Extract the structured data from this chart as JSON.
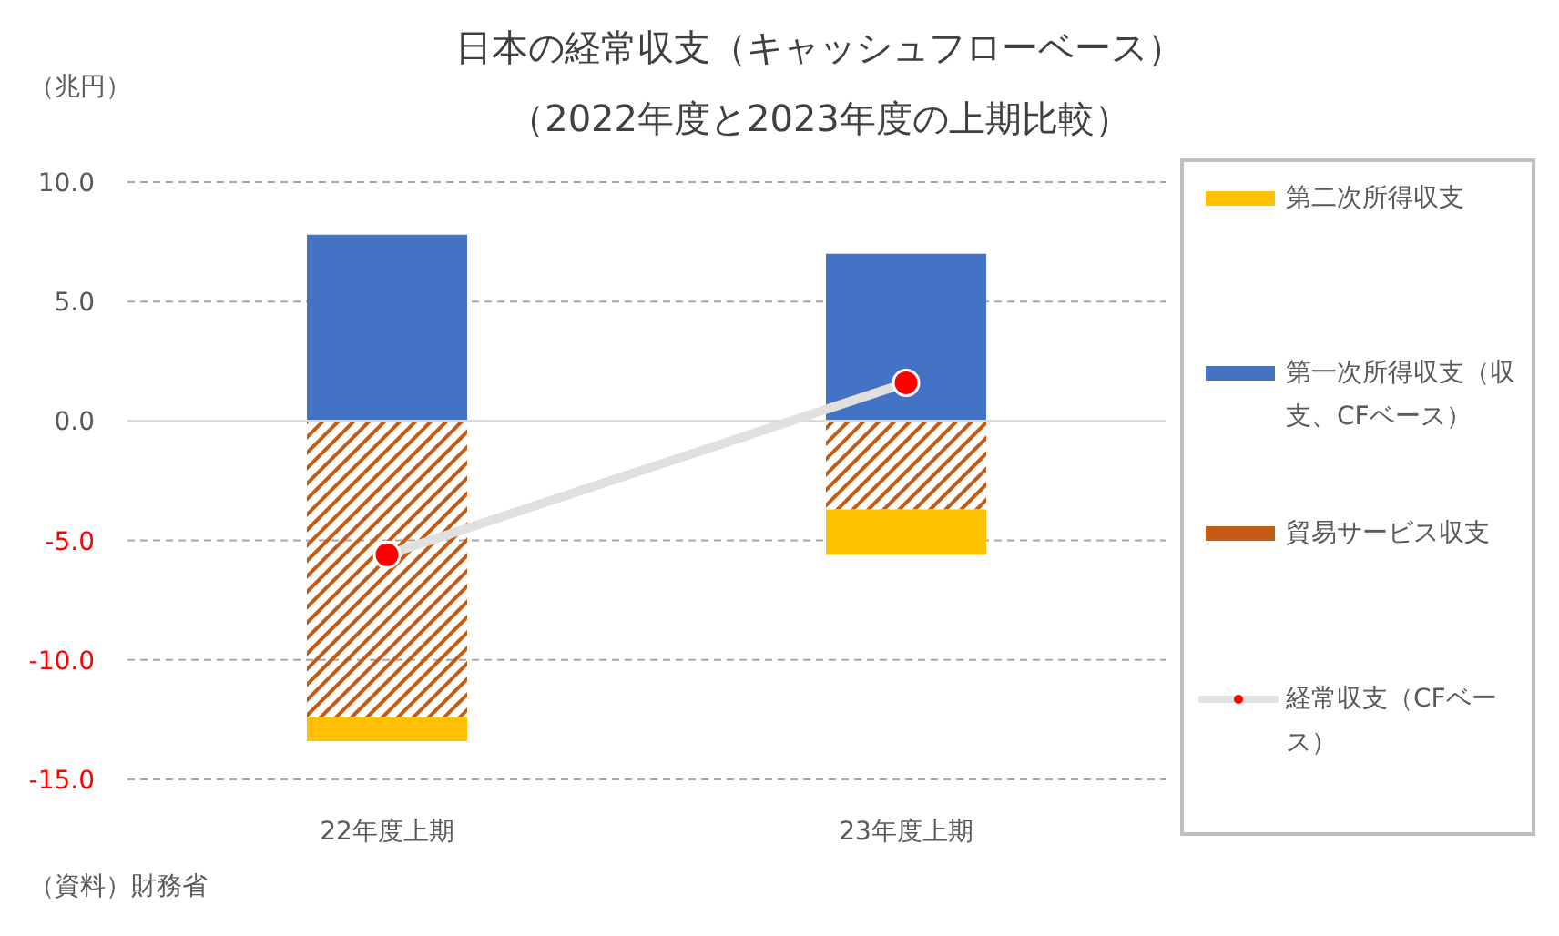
{
  "chart_data": {
    "type": "bar",
    "stacked": true,
    "title": "日本の経常収支（キャッシュフローベース）",
    "subtitle": "（2022年度と2023年度の上期比較）",
    "ylabel": "（兆円）",
    "annotations": [
      "（資料）財務省"
    ],
    "categories": [
      "22年度上期",
      "23年度上期"
    ],
    "series": [
      {
        "name": "貿易サービス収支",
        "color": "#c55a11",
        "values": [
          -12.4,
          -3.7
        ]
      },
      {
        "name": "第二次所得収支",
        "color": "#ffc000",
        "values": [
          -1.0,
          -1.9
        ]
      },
      {
        "name": "第一次所得収支（収支、CFベース）",
        "color": "#4472c4",
        "values": [
          7.8,
          7.0
        ]
      },
      {
        "name": "経常収支（CFベース）",
        "type": "line",
        "color": "#e0e0e0",
        "marker": "circle",
        "values": [
          -5.6,
          1.6
        ]
      }
    ],
    "ylim": [
      -15,
      10
    ],
    "yticks": [
      {
        "value": 10,
        "label": "10.0"
      },
      {
        "value": 5,
        "label": "5.0"
      },
      {
        "value": 0,
        "label": "0.0"
      },
      {
        "value": -5,
        "label": "-5.0"
      },
      {
        "value": -10,
        "label": "-10.0"
      },
      {
        "value": -15,
        "label": "-15.0"
      }
    ],
    "grid": "y",
    "legend": "right"
  }
}
